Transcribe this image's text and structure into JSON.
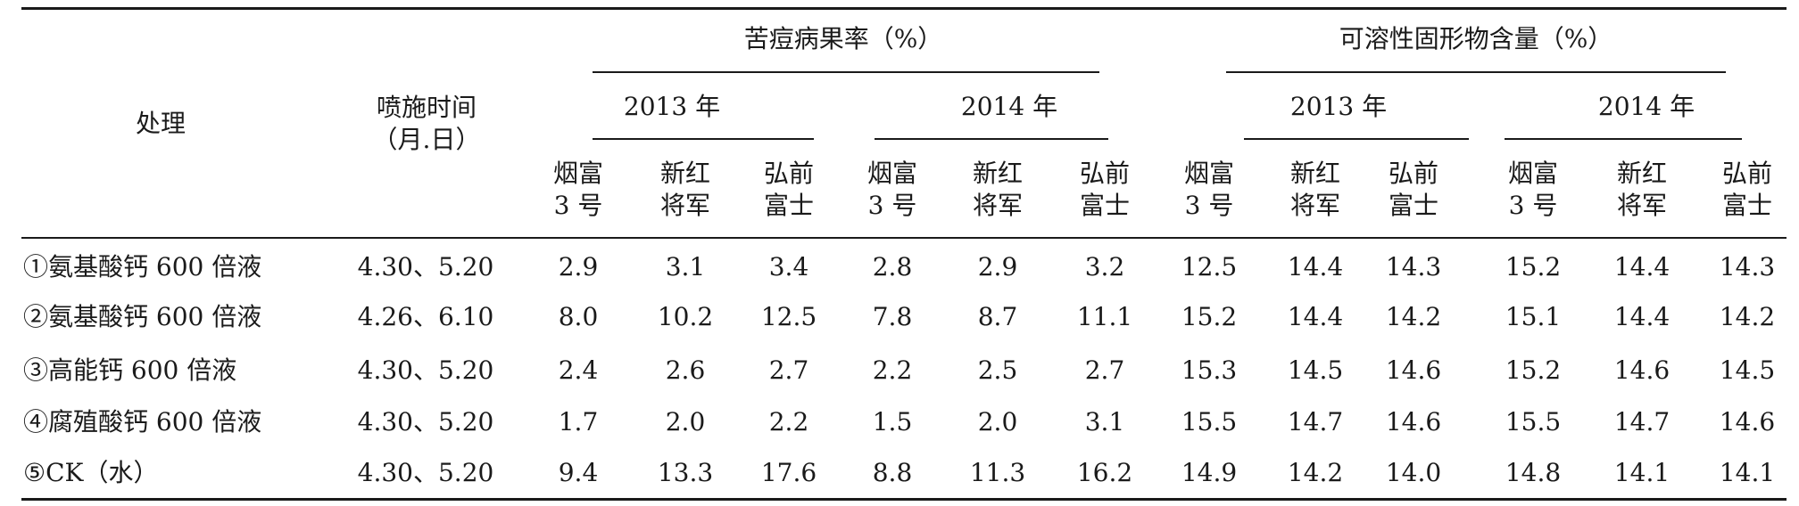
{
  "table": {
    "col_treatment": "处理",
    "col_time": [
      "喷施时间",
      "（月.日）"
    ],
    "group_bitter": "苦痘病果率（%）",
    "group_solids": "可溶性固形物含量（%）",
    "years": [
      "2013 年",
      "2014 年"
    ],
    "varieties": [
      [
        "烟富",
        "3 号"
      ],
      [
        "新红",
        "将军"
      ],
      [
        "弘前",
        "富士"
      ]
    ],
    "rows": [
      {
        "treatment": "①氨基酸钙 600 倍液",
        "time": "4.30、5.20",
        "values": [
          "2.9",
          "3.1",
          "3.4",
          "2.8",
          "2.9",
          "3.2",
          "12.5",
          "14.4",
          "14.3",
          "15.2",
          "14.4",
          "14.3"
        ]
      },
      {
        "treatment": "②氨基酸钙 600 倍液",
        "time": "4.26、6.10",
        "values": [
          "8.0",
          "10.2",
          "12.5",
          "7.8",
          "8.7",
          "11.1",
          "15.2",
          "14.4",
          "14.2",
          "15.1",
          "14.4",
          "14.2"
        ]
      },
      {
        "treatment": "③高能钙 600 倍液",
        "time": "4.30、5.20",
        "values": [
          "2.4",
          "2.6",
          "2.7",
          "2.2",
          "2.5",
          "2.7",
          "15.3",
          "14.5",
          "14.6",
          "15.2",
          "14.6",
          "14.5"
        ]
      },
      {
        "treatment": "④腐殖酸钙 600 倍液",
        "time": "4.30、5.20",
        "values": [
          "1.7",
          "2.0",
          "2.2",
          "1.5",
          "2.0",
          "3.1",
          "15.5",
          "14.7",
          "14.6",
          "15.5",
          "14.7",
          "14.6"
        ]
      },
      {
        "treatment": "⑤CK（水）",
        "time": "4.30、5.20",
        "values": [
          "9.4",
          "13.3",
          "17.6",
          "8.8",
          "11.3",
          "16.2",
          "14.9",
          "14.2",
          "14.0",
          "14.8",
          "14.1",
          "14.1"
        ]
      }
    ]
  }
}
